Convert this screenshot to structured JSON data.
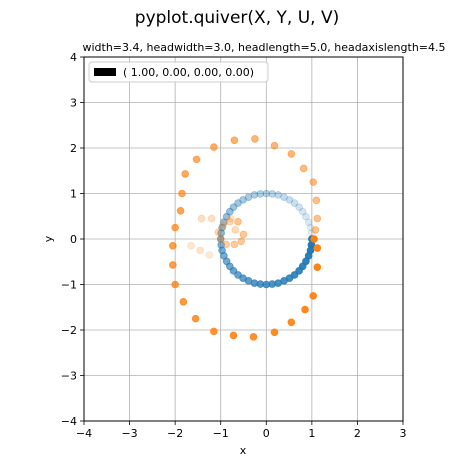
{
  "figure": {
    "title": "pyplot.quiver(X, Y, U, V)",
    "subtitle": "width=3.4, headwidth=3.0, headlength=5.0, headaxislength=4.5"
  },
  "chart_data": {
    "type": "scatter",
    "xlabel": "x",
    "ylabel": "y",
    "xlim": [
      -4,
      3
    ],
    "ylim": [
      -4,
      4
    ],
    "xticks": [
      "−4",
      "−3",
      "−2",
      "−1",
      "0",
      "1",
      "2",
      "3"
    ],
    "yticks": [
      "−4",
      "−3",
      "−2",
      "−1",
      "0",
      "1",
      "2",
      "3",
      "4"
    ],
    "grid": true,
    "legend": {
      "placement": "upper-left",
      "entries": [
        "( 1.00,  0.00,  0.00,  0.00)"
      ]
    },
    "series": [
      {
        "color": "#1f77b4",
        "shape": "circle of radius 1 centered at (0, 0), alpha fading from 1 at angle 0 down to ~0.1 going clockwise",
        "points": [
          [
            1.0,
            0.0
          ],
          [
            0.99,
            -0.13
          ],
          [
            0.97,
            -0.25
          ],
          [
            0.93,
            -0.37
          ],
          [
            0.87,
            -0.49
          ],
          [
            0.8,
            -0.6
          ],
          [
            0.72,
            -0.7
          ],
          [
            0.62,
            -0.79
          ],
          [
            0.51,
            -0.86
          ],
          [
            0.39,
            -0.92
          ],
          [
            0.26,
            -0.97
          ],
          [
            0.13,
            -0.99
          ],
          [
            0.0,
            -1.0
          ],
          [
            -0.13,
            -0.99
          ],
          [
            -0.26,
            -0.97
          ],
          [
            -0.39,
            -0.92
          ],
          [
            -0.51,
            -0.86
          ],
          [
            -0.62,
            -0.79
          ],
          [
            -0.72,
            -0.7
          ],
          [
            -0.8,
            -0.6
          ],
          [
            -0.87,
            -0.49
          ],
          [
            -0.93,
            -0.37
          ],
          [
            -0.97,
            -0.25
          ],
          [
            -0.99,
            -0.13
          ],
          [
            -1.0,
            0.0
          ],
          [
            -0.99,
            0.13
          ],
          [
            -0.97,
            0.25
          ],
          [
            -0.93,
            0.37
          ],
          [
            -0.87,
            0.49
          ],
          [
            -0.8,
            0.6
          ],
          [
            -0.72,
            0.7
          ],
          [
            -0.62,
            0.79
          ],
          [
            -0.51,
            0.86
          ],
          [
            -0.39,
            0.92
          ],
          [
            -0.26,
            0.97
          ],
          [
            -0.13,
            0.99
          ],
          [
            0.0,
            1.0
          ],
          [
            0.13,
            0.99
          ],
          [
            0.26,
            0.97
          ],
          [
            0.39,
            0.92
          ],
          [
            0.51,
            0.86
          ],
          [
            0.62,
            0.79
          ],
          [
            0.72,
            0.7
          ],
          [
            0.8,
            0.6
          ],
          [
            0.87,
            0.49
          ],
          [
            0.93,
            0.37
          ],
          [
            0.97,
            0.25
          ],
          [
            0.99,
            0.13
          ]
        ]
      },
      {
        "color": "#ff7f0e",
        "shape": "outer ring of radius ~1.15 centered at (-1, 0) and inner cluster of radius ~0.3 centered at (-0.8, 0), alpha fading from 1 at angle 0 going clockwise",
        "points": [
          [
            1.05,
            0.0
          ],
          [
            1.12,
            -0.2
          ],
          [
            1.12,
            -0.62
          ],
          [
            1.03,
            -1.25
          ],
          [
            0.85,
            -1.55
          ],
          [
            0.55,
            -1.83
          ],
          [
            0.18,
            -2.05
          ],
          [
            -0.28,
            -2.15
          ],
          [
            -0.72,
            -2.12
          ],
          [
            -1.15,
            -2.03
          ],
          [
            -1.55,
            -1.75
          ],
          [
            -1.82,
            -1.38
          ],
          [
            -2.0,
            -1.0
          ],
          [
            -2.05,
            -0.57
          ],
          [
            -2.05,
            -0.15
          ],
          [
            -2.0,
            0.25
          ],
          [
            -1.88,
            0.62
          ],
          [
            -1.85,
            1.0
          ],
          [
            -1.78,
            1.43
          ],
          [
            -1.53,
            1.75
          ],
          [
            -1.15,
            2.02
          ],
          [
            -0.7,
            2.17
          ],
          [
            -0.25,
            2.2
          ],
          [
            0.18,
            2.05
          ],
          [
            0.55,
            1.87
          ],
          [
            0.82,
            1.55
          ],
          [
            1.03,
            1.25
          ],
          [
            1.1,
            0.85
          ],
          [
            1.12,
            0.45
          ],
          [
            1.08,
            0.2
          ],
          [
            -0.62,
            0.38
          ],
          [
            -0.5,
            0.1
          ],
          [
            -0.55,
            -0.05
          ],
          [
            -0.7,
            -0.12
          ],
          [
            -0.88,
            -0.12
          ],
          [
            -1.0,
            0.0
          ],
          [
            -1.05,
            0.15
          ],
          [
            -0.95,
            0.3
          ],
          [
            -0.8,
            0.38
          ],
          [
            -0.68,
            0.2
          ],
          [
            -1.42,
            0.45
          ],
          [
            -1.2,
            0.45
          ],
          [
            -0.78,
            0.45
          ],
          [
            -1.45,
            -0.25
          ],
          [
            -1.65,
            -0.15
          ],
          [
            -1.25,
            -0.35
          ]
        ]
      }
    ]
  },
  "colors": {
    "blue": "#1f77b4",
    "orange": "#ff7f0e",
    "grid": "#b0b0b0",
    "axes": "#000000"
  }
}
